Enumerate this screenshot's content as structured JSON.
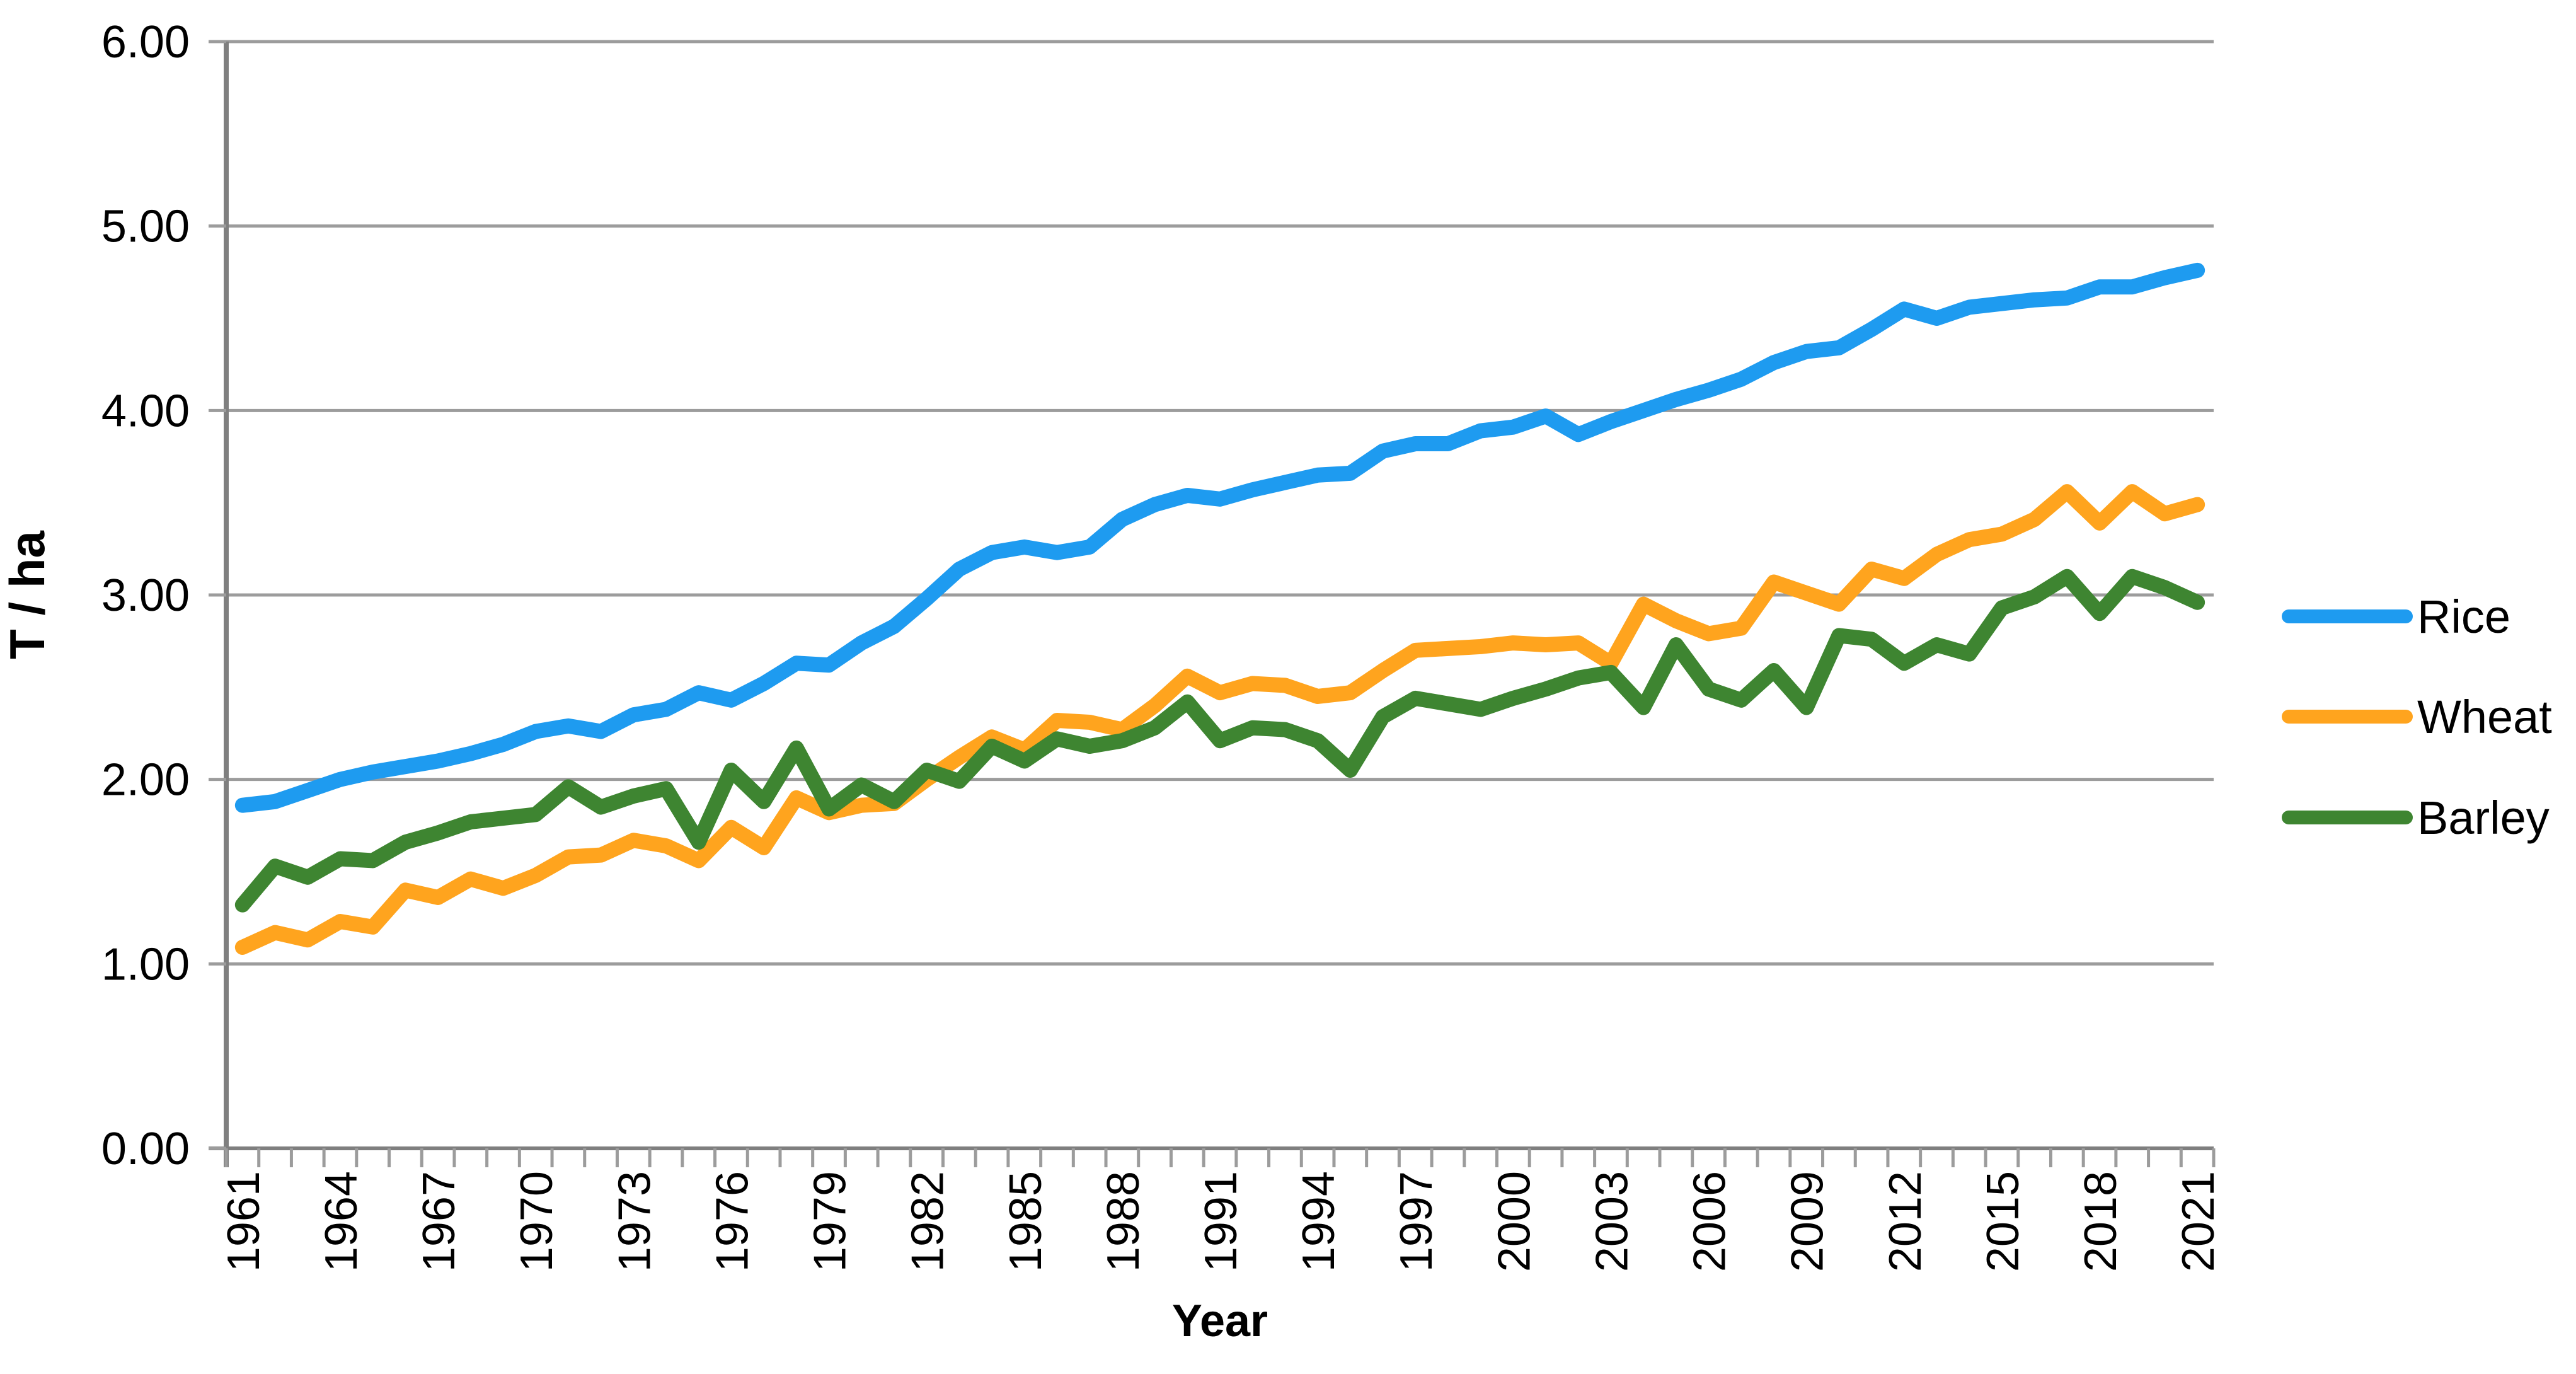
{
  "chart_data": {
    "type": "line",
    "title": "",
    "xlabel": "Year",
    "ylabel": "T / ha",
    "ylim": [
      0,
      6
    ],
    "ytick_step": 1,
    "ytick_labels": [
      "0.00",
      "1.00",
      "2.00",
      "3.00",
      "4.00",
      "5.00",
      "6.00"
    ],
    "grid": "horizontal",
    "legend_position": "right",
    "x_label_every": 3,
    "x": [
      1961,
      1962,
      1963,
      1964,
      1965,
      1966,
      1967,
      1968,
      1969,
      1970,
      1971,
      1972,
      1973,
      1974,
      1975,
      1976,
      1977,
      1978,
      1979,
      1980,
      1981,
      1982,
      1983,
      1984,
      1985,
      1986,
      1987,
      1988,
      1989,
      1990,
      1991,
      1992,
      1993,
      1994,
      1995,
      1996,
      1997,
      1998,
      1999,
      2000,
      2001,
      2002,
      2003,
      2004,
      2005,
      2006,
      2007,
      2008,
      2009,
      2010,
      2011,
      2012,
      2013,
      2014,
      2015,
      2016,
      2017,
      2018,
      2019,
      2020,
      2021
    ],
    "series": [
      {
        "name": "Rice",
        "color": "#1E9BF0",
        "values": [
          1.86,
          1.88,
          1.94,
          2.0,
          2.04,
          2.07,
          2.1,
          2.14,
          2.19,
          2.26,
          2.29,
          2.26,
          2.35,
          2.38,
          2.47,
          2.43,
          2.52,
          2.63,
          2.62,
          2.74,
          2.83,
          2.98,
          3.14,
          3.23,
          3.26,
          3.23,
          3.26,
          3.41,
          3.49,
          3.54,
          3.52,
          3.57,
          3.61,
          3.65,
          3.66,
          3.78,
          3.82,
          3.82,
          3.89,
          3.91,
          3.97,
          3.87,
          3.94,
          4.0,
          4.06,
          4.11,
          4.17,
          4.26,
          4.32,
          4.34,
          4.44,
          4.55,
          4.5,
          4.56,
          4.58,
          4.6,
          4.61,
          4.67,
          4.67,
          4.72,
          4.76
        ]
      },
      {
        "name": "Wheat",
        "color": "#FFA41E",
        "values": [
          1.09,
          1.17,
          1.13,
          1.23,
          1.2,
          1.4,
          1.36,
          1.46,
          1.41,
          1.48,
          1.58,
          1.59,
          1.67,
          1.64,
          1.56,
          1.74,
          1.63,
          1.9,
          1.82,
          1.86,
          1.87,
          2.0,
          2.12,
          2.23,
          2.16,
          2.32,
          2.31,
          2.27,
          2.4,
          2.56,
          2.47,
          2.52,
          2.51,
          2.45,
          2.47,
          2.59,
          2.7,
          2.71,
          2.72,
          2.74,
          2.73,
          2.74,
          2.63,
          2.95,
          2.86,
          2.79,
          2.82,
          3.07,
          3.01,
          2.95,
          3.14,
          3.09,
          3.22,
          3.3,
          3.33,
          3.41,
          3.56,
          3.39,
          3.56,
          3.44,
          3.49
        ]
      },
      {
        "name": "Barley",
        "color": "#3E8531",
        "values": [
          1.32,
          1.53,
          1.47,
          1.57,
          1.56,
          1.66,
          1.71,
          1.77,
          1.79,
          1.81,
          1.96,
          1.85,
          1.91,
          1.95,
          1.66,
          2.05,
          1.88,
          2.17,
          1.84,
          1.97,
          1.88,
          2.05,
          1.99,
          2.18,
          2.1,
          2.22,
          2.18,
          2.21,
          2.28,
          2.42,
          2.21,
          2.28,
          2.27,
          2.21,
          2.05,
          2.34,
          2.44,
          2.41,
          2.38,
          2.44,
          2.49,
          2.55,
          2.58,
          2.39,
          2.73,
          2.49,
          2.43,
          2.59,
          2.39,
          2.78,
          2.76,
          2.63,
          2.73,
          2.68,
          2.93,
          2.99,
          3.1,
          2.9,
          3.1,
          3.04,
          2.96
        ]
      }
    ],
    "colors": {
      "gridline": "#9C9C9C",
      "axis": "#7F7F7F",
      "text": "#000000",
      "background": "#FFFFFF"
    }
  }
}
